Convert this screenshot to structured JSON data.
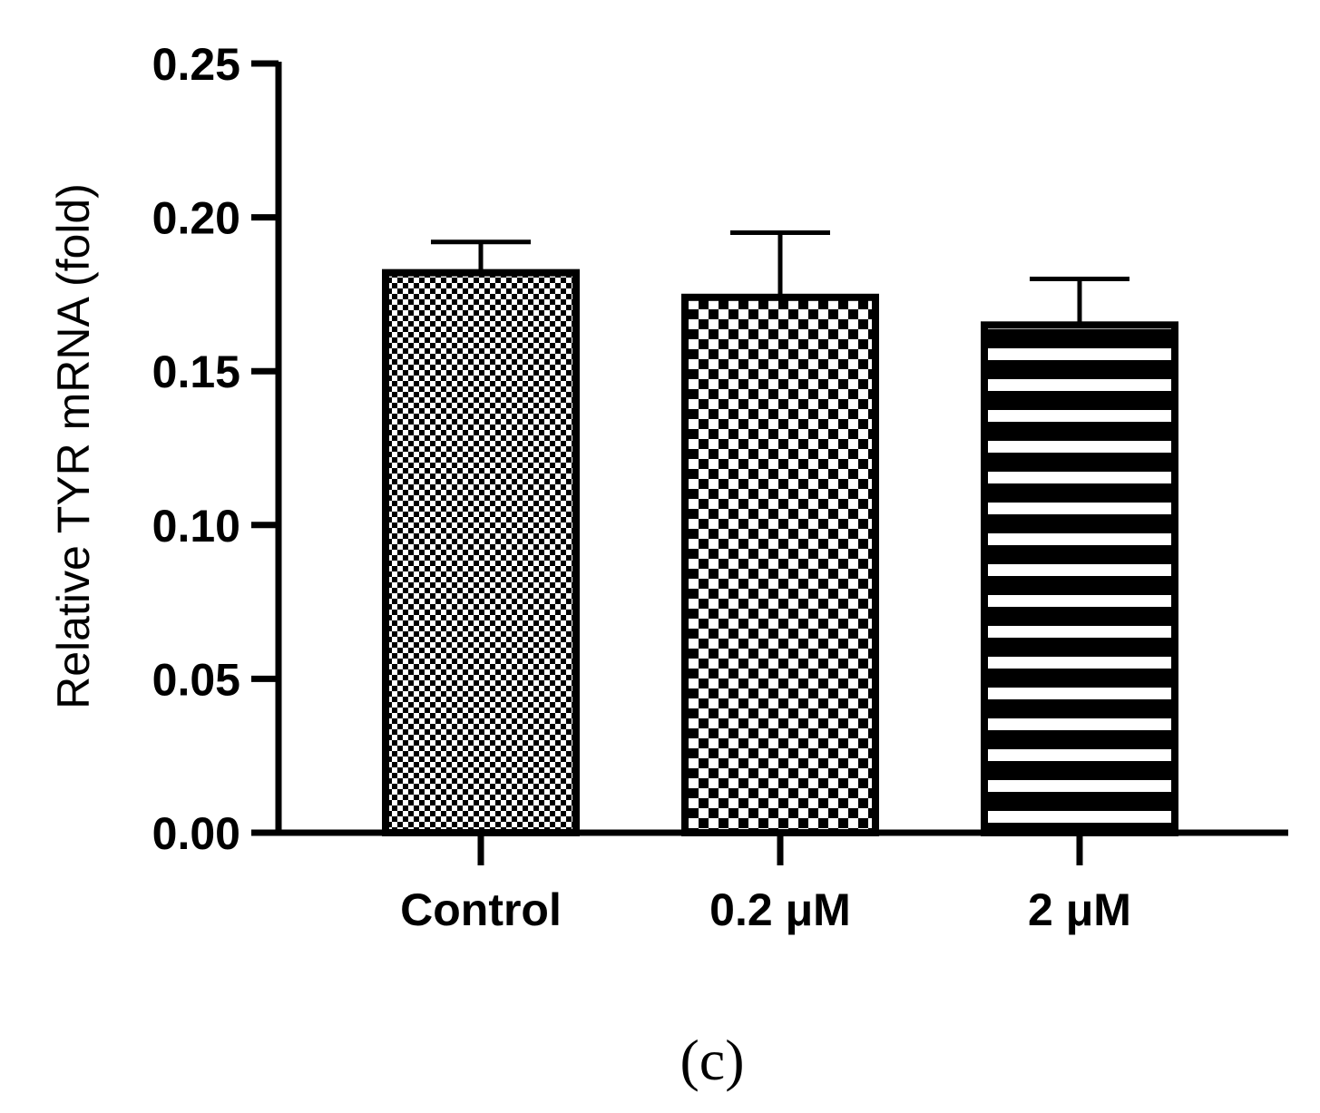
{
  "chart_data": {
    "type": "bar",
    "title": "",
    "xlabel": "",
    "ylabel": "Relative TYR mRNA (fold)",
    "categories": [
      "Control",
      "0.2 μM",
      "2 μM"
    ],
    "values": [
      0.182,
      0.174,
      0.165
    ],
    "error": [
      0.01,
      0.021,
      0.015
    ],
    "ylim": [
      0,
      0.25
    ],
    "yticks": [
      "0.00",
      "0.05",
      "0.10",
      "0.15",
      "0.20",
      "0.25"
    ],
    "fill_patterns": [
      "fine-checker",
      "coarse-checker",
      "horizontal-stripes"
    ],
    "colors": {
      "bar_stroke": "#000000",
      "bar_fill": "#ffffff",
      "axis": "#000000"
    },
    "grid": false,
    "legend": "none"
  },
  "panel_label": "(c)"
}
